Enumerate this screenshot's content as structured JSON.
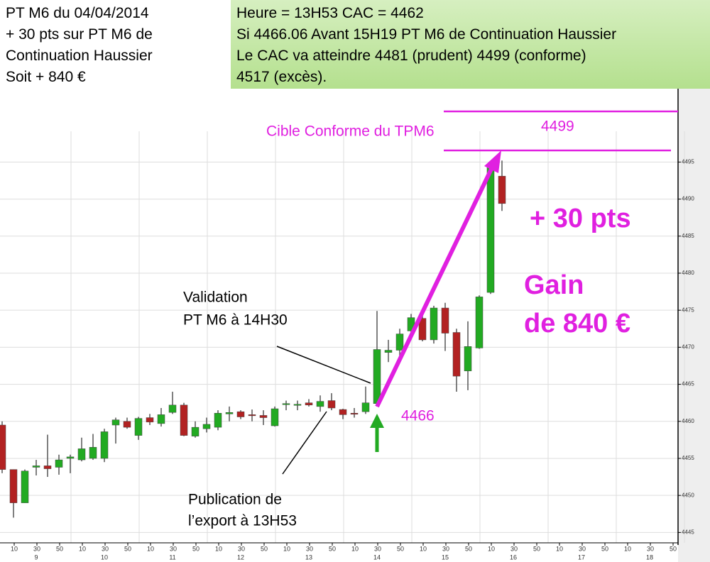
{
  "header": {
    "left": [
      "PT M6 du 04/04/2014",
      "+ 30 pts sur PT M6 de",
      "Continuation Haussier",
      "Soit + 840 €"
    ],
    "right": [
      "Heure = 13H53   CAC = 4462",
      "Si 4466.06 Avant 15H19 PT M6 de Continuation Haussier",
      "Le CAC va atteindre 4481 (prudent)  4499 (conforme)",
      "4517 (excès)."
    ]
  },
  "chart_data": {
    "type": "candlestick",
    "up_color": "#22aa22",
    "down_color": "#b22222",
    "ylim": [
      4443.6,
      4504.9
    ],
    "yticks": [
      4445,
      4450,
      4455,
      4460,
      4465,
      4470,
      4475,
      4480,
      4485,
      4490,
      4495
    ],
    "grid": true,
    "x_minute_labels": [
      10,
      30,
      50,
      10,
      30,
      50,
      10,
      30,
      50,
      10,
      30,
      50,
      10,
      30,
      50,
      10,
      30,
      50,
      10,
      30,
      50,
      10,
      30,
      50,
      10,
      30,
      50,
      10,
      30,
      50
    ],
    "x_hour_labels": [
      9,
      10,
      11,
      12,
      13,
      14,
      15,
      16,
      17,
      18
    ],
    "open": [
      4459.5,
      4453.5,
      4449,
      4453.8,
      4454,
      4453.8,
      4455,
      4454.8,
      4455,
      4455,
      4459.5,
      4460,
      4458.1,
      4460.5,
      4459.7,
      4461.2,
      4462.2,
      4458,
      4459,
      4459.2,
      4461,
      4461.3,
      4460.9,
      4460.8,
      4459.4,
      4462.3,
      4462.2,
      4462.5,
      4462,
      4462.8,
      4461.6,
      4461.1,
      4461.3,
      4462.4,
      4469.3,
      4469.6,
      4472.2,
      4473.9,
      4471,
      4475.3,
      4472,
      4466.8,
      4469.9,
      4477.4,
      4493.1
    ],
    "high": [
      4460,
      4453.5,
      4453.5,
      4454.8,
      4458.2,
      4455.5,
      4455.5,
      4457.8,
      4458.3,
      4459,
      4460.5,
      4460.5,
      4460.6,
      4461,
      4461.8,
      4464,
      4462.5,
      4460,
      4460.5,
      4461.5,
      4462,
      4461.5,
      4461.6,
      4461.5,
      4462,
      4462.8,
      4462.8,
      4463,
      4463.5,
      4463.8,
      4461.7,
      4461.8,
      4464.7,
      4474.9,
      4471,
      4472.5,
      4474.5,
      4474.5,
      4475.6,
      4476,
      4472.5,
      4473.5,
      4477,
      4494.8,
      4495.2
    ],
    "low": [
      4453,
      4447,
      4449,
      4452.7,
      4452.5,
      4452.8,
      4453,
      4454.6,
      4454.8,
      4454.5,
      4457,
      4459,
      4457.5,
      4459.5,
      4459.3,
      4461,
      4458,
      4457.8,
      4458.5,
      4458.8,
      4460,
      4460.3,
      4460,
      4459.5,
      4459.3,
      4461.5,
      4461.5,
      4462,
      4461.3,
      4461.5,
      4460.3,
      4460.5,
      4461,
      4462,
      4468,
      4468.5,
      4471.5,
      4470.8,
      4470.5,
      4469.5,
      4464,
      4464.2,
      4469.8,
      4477.2,
      4488.4
    ],
    "close": [
      4453.5,
      4449,
      4453.3,
      4454,
      4453.6,
      4454.8,
      4455.2,
      4456.3,
      4456.5,
      4458.6,
      4460.2,
      4459.2,
      4460.4,
      4459.9,
      4460.9,
      4462.2,
      4458.1,
      4459.2,
      4459.6,
      4461.1,
      4461.2,
      4460.6,
      4460.8,
      4460.5,
      4461.7,
      4462.4,
      4462.3,
      4462.2,
      4462.7,
      4461.8,
      4460.9,
      4461,
      4462.5,
      4469.7,
      4469.6,
      4471.8,
      4474,
      4471,
      4475.3,
      4471.9,
      4466.1,
      4470.1,
      4476.8,
      4494.6,
      4489.4
    ],
    "annotations": [
      "Cible Conforme du TPM6",
      "4499",
      "+ 30 pts",
      "Gain",
      "de 840 €",
      "Validation",
      "PT M6 à 14H30",
      "Publication de",
      "l’export à 13H53",
      "4466"
    ]
  }
}
